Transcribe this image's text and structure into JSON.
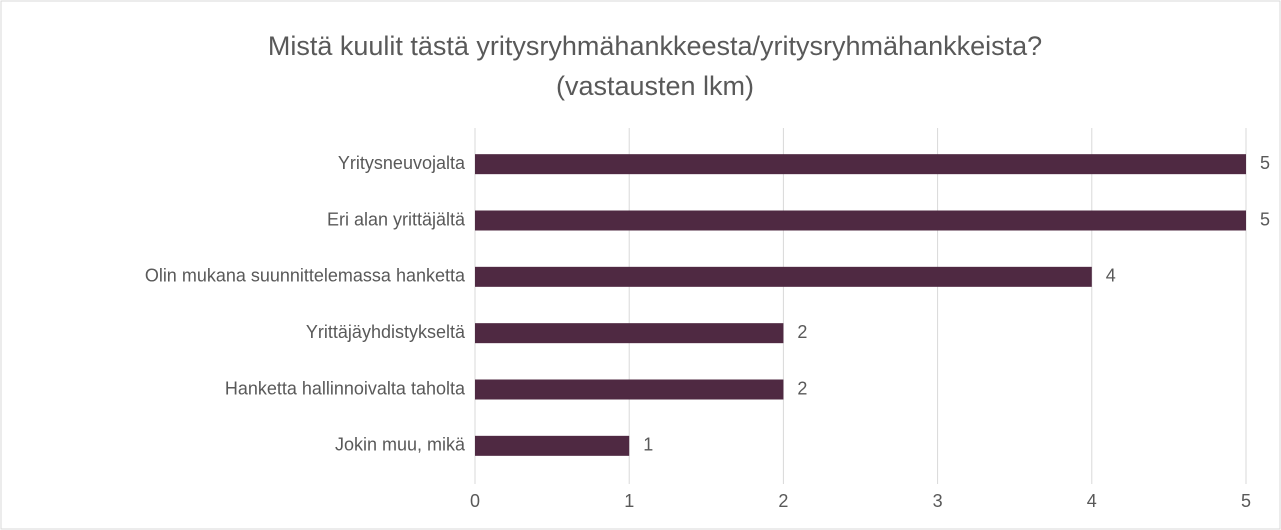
{
  "chart_data": {
    "type": "bar",
    "orientation": "horizontal",
    "title": [
      "Mistä kuulit tästä yritysryhmähankkeesta/yritysryhmähankkeista?",
      "(vastausten lkm)"
    ],
    "categories": [
      "Yritysneuvojalta",
      "Eri alan yrittäjältä",
      "Olin mukana suunnittelemassa hanketta",
      "Yrittäjäyhdistykseltä",
      "Hanketta hallinnoivalta taholta",
      "Jokin muu, mikä"
    ],
    "values": [
      5,
      5,
      4,
      2,
      2,
      1
    ],
    "color": "#4f2942",
    "xlim": [
      0,
      5
    ],
    "xticks": [
      0,
      1,
      2,
      3,
      4,
      5
    ],
    "grid": true,
    "data_labels": true
  }
}
